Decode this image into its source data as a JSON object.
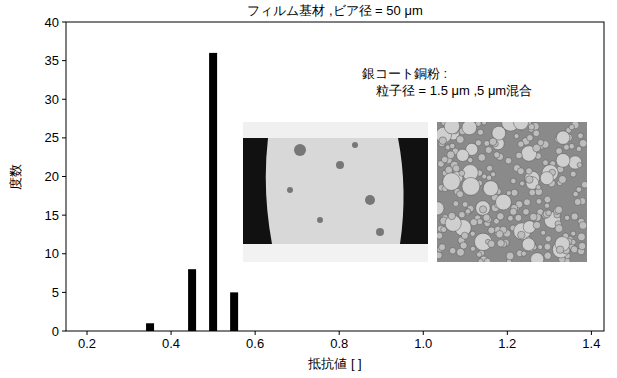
{
  "chart_data": {
    "type": "bar",
    "title": "フィルム基材 ,ビア径 = 50 μm",
    "x_label": "抵抗値 [ ]",
    "y_label": "度数",
    "annotations": [
      "銀コート銅粉 :",
      "粒子径 = 1.5 μm ,5 μm混合"
    ],
    "x": [
      0.35,
      0.45,
      0.5,
      0.55
    ],
    "values": [
      1,
      8,
      36,
      5
    ],
    "color": "#000000",
    "xlim": [
      0.15,
      1.43
    ],
    "ylim": [
      0,
      40
    ],
    "xticks": [
      0.2,
      0.4,
      0.6,
      0.8,
      {
        "value": 1,
        "label": "1.0"
      },
      1.2,
      1.4
    ],
    "yticks": [
      0,
      5,
      10,
      15,
      20,
      25,
      30,
      35,
      40
    ],
    "grid": false
  }
}
